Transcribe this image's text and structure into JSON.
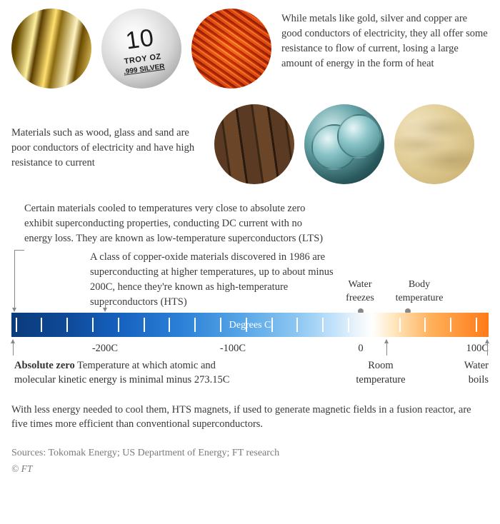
{
  "row1_text": "While metals like gold, silver and copper are good conductors of electricity, they all offer some resistance to flow of current, losing a large amount of energy in the form of heat",
  "row2_text": "Materials such as wood, glass and sand are poor conductors of electricity and have high resistance to current",
  "silver": {
    "ten": "10",
    "troy": "TROY OZ",
    "fine": ".999 SILVER"
  },
  "annot_lts": "Certain materials cooled to temperatures very close to absolute zero exhibit superconducting properties, conducting DC current with no energy loss. They are known as low-temperature superconductors (LTS)",
  "annot_hts": "A class of copper-oxide materials discovered in 1986 are superconducting at higher temperatures, up to about minus 200C, hence they're known as high-temperature superconductors (HTS)",
  "water_freezes": "Water freezes",
  "body_temp": "Body temperature",
  "degrees_c": "Degrees C",
  "scale": {
    "min": -273.15,
    "max": 100,
    "tick_start": -270,
    "tick_step": 20,
    "labels": [
      {
        "value": -200,
        "text": "-200C"
      },
      {
        "value": -100,
        "text": "-100C"
      },
      {
        "value": 0,
        "text": "0"
      },
      {
        "value": 100,
        "text": "100C"
      }
    ],
    "markers": {
      "absolute_zero": -273.15,
      "hts": -200,
      "water_freezes": 0,
      "room_temp": 20,
      "body_temp": 37,
      "water_boils": 100
    },
    "gradient_stops": [
      [
        "#0a3a7a",
        0
      ],
      [
        "#0f4a99",
        12
      ],
      [
        "#1560bd",
        22
      ],
      [
        "#2a7fd6",
        35
      ],
      [
        "#56a5e6",
        48
      ],
      [
        "#8dc7f2",
        60
      ],
      [
        "#c5e4fa",
        68
      ],
      [
        "#f0f6fb",
        73
      ],
      [
        "#ffffff",
        75.5
      ],
      [
        "#ffe8c0",
        80
      ],
      [
        "#ffb05a",
        88
      ],
      [
        "#ff7a18",
        100
      ]
    ]
  },
  "abs_zero_bold": "Absolute zero",
  "abs_zero_rest": " Temperature at which atomic and molecular kinetic energy is minimal minus 273.15C",
  "room_temp": "Room temperature",
  "water_boils": "Water boils",
  "footer": "With less energy needed to cool them, HTS magnets, if used to generate magnetic fields in a fusion reactor, are five times more efficient than conventional superconductors.",
  "sources": "Sources: Tokomak Energy; US Department of Energy; FT research",
  "copyright": "© FT"
}
